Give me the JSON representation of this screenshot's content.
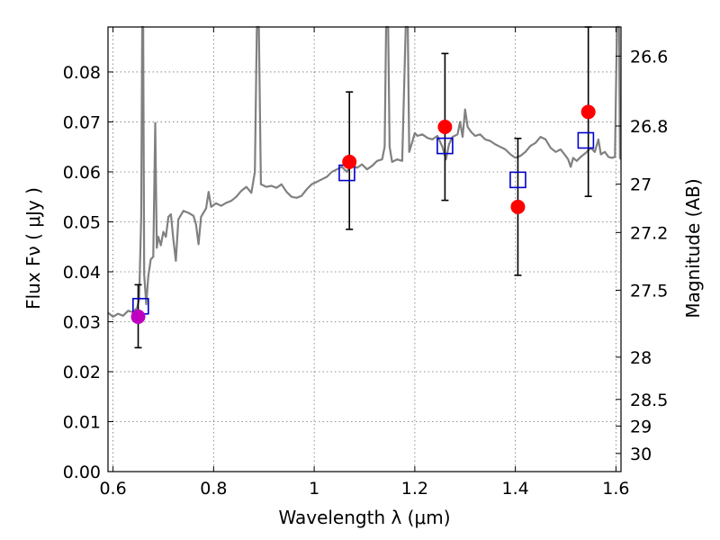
{
  "chart_data": {
    "type": "scatter",
    "xlabel": "Wavelength  λ (μm)",
    "ylabel": "Flux  Fν  ( μJy )",
    "y2label": "Magnitude (AB)",
    "xlim": [
      0.59,
      1.61
    ],
    "ylim": [
      0.0,
      0.089
    ],
    "grid": true,
    "x_ticks": [
      {
        "value": 0.6,
        "label": "0.6"
      },
      {
        "value": 0.8,
        "label": "0.8"
      },
      {
        "value": 1.0,
        "label": "1"
      },
      {
        "value": 1.2,
        "label": "1.2"
      },
      {
        "value": 1.4,
        "label": "1.4"
      },
      {
        "value": 1.6,
        "label": "1.6"
      }
    ],
    "y_ticks": [
      {
        "value": 0.0,
        "label": "0.00"
      },
      {
        "value": 0.01,
        "label": "0.01"
      },
      {
        "value": 0.02,
        "label": "0.02"
      },
      {
        "value": 0.03,
        "label": "0.03"
      },
      {
        "value": 0.04,
        "label": "0.04"
      },
      {
        "value": 0.05,
        "label": "0.05"
      },
      {
        "value": 0.06,
        "label": "0.06"
      },
      {
        "value": 0.07,
        "label": "0.07"
      },
      {
        "value": 0.08,
        "label": "0.08"
      }
    ],
    "mag_ticks": [
      {
        "value": 26.6,
        "label": "26.6"
      },
      {
        "value": 26.8,
        "label": "26.8"
      },
      {
        "value": 27.0,
        "label": "27"
      },
      {
        "value": 27.2,
        "label": "27.2"
      },
      {
        "value": 27.5,
        "label": "27.5"
      },
      {
        "value": 28.0,
        "label": "28"
      },
      {
        "value": 28.5,
        "label": "28.5"
      },
      {
        "value": 29.0,
        "label": "29"
      },
      {
        "value": 30.0,
        "label": "30"
      }
    ],
    "observed": [
      {
        "x": 0.65,
        "y": 0.031,
        "yerr_low": 0.0248,
        "yerr_high": 0.0374,
        "color": "#bf00bf"
      },
      {
        "x": 1.07,
        "y": 0.062,
        "yerr_low": 0.0485,
        "yerr_high": 0.076,
        "color": "#ff0000"
      },
      {
        "x": 1.26,
        "y": 0.069,
        "yerr_low": 0.0543,
        "yerr_high": 0.0837,
        "color": "#ff0000"
      },
      {
        "x": 1.405,
        "y": 0.053,
        "yerr_low": 0.0393,
        "yerr_high": 0.0667,
        "color": "#ff0000"
      },
      {
        "x": 1.545,
        "y": 0.072,
        "yerr_low": 0.0551,
        "yerr_high": 0.089,
        "color": "#ff0000"
      }
    ],
    "model_points": [
      {
        "x": 0.655,
        "y": 0.0331
      },
      {
        "x": 1.065,
        "y": 0.0598
      },
      {
        "x": 1.26,
        "y": 0.0652
      },
      {
        "x": 1.405,
        "y": 0.0584
      },
      {
        "x": 1.54,
        "y": 0.0663
      }
    ],
    "spectrum": {
      "color": "#808080",
      "points": [
        [
          0.59,
          0.0318
        ],
        [
          0.6,
          0.031
        ],
        [
          0.61,
          0.0316
        ],
        [
          0.62,
          0.0312
        ],
        [
          0.63,
          0.0322
        ],
        [
          0.64,
          0.0319
        ],
        [
          0.648,
          0.0328
        ],
        [
          0.652,
          0.0345
        ],
        [
          0.656,
          0.051
        ],
        [
          0.658,
          0.089
        ],
        [
          0.66,
          0.089
        ],
        [
          0.662,
          0.0395
        ],
        [
          0.666,
          0.0335
        ],
        [
          0.67,
          0.039
        ],
        [
          0.675,
          0.0425
        ],
        [
          0.68,
          0.043
        ],
        [
          0.684,
          0.0698
        ],
        [
          0.687,
          0.0448
        ],
        [
          0.69,
          0.047
        ],
        [
          0.695,
          0.0453
        ],
        [
          0.7,
          0.048
        ],
        [
          0.705,
          0.047
        ],
        [
          0.71,
          0.051
        ],
        [
          0.715,
          0.0515
        ],
        [
          0.72,
          0.0465
        ],
        [
          0.725,
          0.0422
        ],
        [
          0.73,
          0.0505
        ],
        [
          0.74,
          0.0522
        ],
        [
          0.75,
          0.0518
        ],
        [
          0.76,
          0.0512
        ],
        [
          0.765,
          0.0495
        ],
        [
          0.77,
          0.0455
        ],
        [
          0.775,
          0.051
        ],
        [
          0.785,
          0.0527
        ],
        [
          0.79,
          0.056
        ],
        [
          0.795,
          0.053
        ],
        [
          0.805,
          0.0537
        ],
        [
          0.815,
          0.0532
        ],
        [
          0.825,
          0.0538
        ],
        [
          0.835,
          0.0542
        ],
        [
          0.845,
          0.055
        ],
        [
          0.855,
          0.0562
        ],
        [
          0.865,
          0.057
        ],
        [
          0.875,
          0.0558
        ],
        [
          0.882,
          0.06
        ],
        [
          0.886,
          0.089
        ],
        [
          0.89,
          0.089
        ],
        [
          0.894,
          0.0575
        ],
        [
          0.905,
          0.057
        ],
        [
          0.915,
          0.0572
        ],
        [
          0.925,
          0.0568
        ],
        [
          0.935,
          0.0575
        ],
        [
          0.945,
          0.056
        ],
        [
          0.955,
          0.055
        ],
        [
          0.965,
          0.0548
        ],
        [
          0.975,
          0.0552
        ],
        [
          0.985,
          0.0565
        ],
        [
          0.995,
          0.0575
        ],
        [
          1.005,
          0.058
        ],
        [
          1.015,
          0.0585
        ],
        [
          1.025,
          0.059
        ],
        [
          1.035,
          0.06
        ],
        [
          1.045,
          0.0605
        ],
        [
          1.055,
          0.061
        ],
        [
          1.065,
          0.06
        ],
        [
          1.075,
          0.0615
        ],
        [
          1.085,
          0.0608
        ],
        [
          1.095,
          0.0615
        ],
        [
          1.105,
          0.0605
        ],
        [
          1.115,
          0.0612
        ],
        [
          1.125,
          0.0622
        ],
        [
          1.135,
          0.0625
        ],
        [
          1.14,
          0.065
        ],
        [
          1.143,
          0.089
        ],
        [
          1.147,
          0.089
        ],
        [
          1.15,
          0.065
        ],
        [
          1.155,
          0.062
        ],
        [
          1.165,
          0.0625
        ],
        [
          1.175,
          0.0622
        ],
        [
          1.182,
          0.089
        ],
        [
          1.186,
          0.089
        ],
        [
          1.189,
          0.064
        ],
        [
          1.195,
          0.066
        ],
        [
          1.2,
          0.0678
        ],
        [
          1.205,
          0.0672
        ],
        [
          1.215,
          0.0675
        ],
        [
          1.225,
          0.0668
        ],
        [
          1.235,
          0.0665
        ],
        [
          1.245,
          0.0672
        ],
        [
          1.255,
          0.065
        ],
        [
          1.262,
          0.0625
        ],
        [
          1.268,
          0.0655
        ],
        [
          1.275,
          0.067
        ],
        [
          1.285,
          0.0675
        ],
        [
          1.29,
          0.07
        ],
        [
          1.295,
          0.067
        ],
        [
          1.3,
          0.0725
        ],
        [
          1.305,
          0.069
        ],
        [
          1.312,
          0.068
        ],
        [
          1.32,
          0.0672
        ],
        [
          1.33,
          0.0675
        ],
        [
          1.34,
          0.0665
        ],
        [
          1.35,
          0.0662
        ],
        [
          1.36,
          0.0655
        ],
        [
          1.37,
          0.065
        ],
        [
          1.38,
          0.0645
        ],
        [
          1.39,
          0.0635
        ],
        [
          1.4,
          0.0628
        ],
        [
          1.41,
          0.0632
        ],
        [
          1.42,
          0.064
        ],
        [
          1.43,
          0.0652
        ],
        [
          1.44,
          0.0658
        ],
        [
          1.45,
          0.067
        ],
        [
          1.46,
          0.0665
        ],
        [
          1.47,
          0.0648
        ],
        [
          1.48,
          0.064
        ],
        [
          1.49,
          0.0645
        ],
        [
          1.5,
          0.0632
        ],
        [
          1.505,
          0.0625
        ],
        [
          1.51,
          0.061
        ],
        [
          1.515,
          0.0628
        ],
        [
          1.522,
          0.0622
        ],
        [
          1.53,
          0.063
        ],
        [
          1.54,
          0.0638
        ],
        [
          1.55,
          0.0648
        ],
        [
          1.558,
          0.064
        ],
        [
          1.565,
          0.0665
        ],
        [
          1.57,
          0.0635
        ],
        [
          1.578,
          0.064
        ],
        [
          1.585,
          0.063
        ],
        [
          1.592,
          0.0628
        ],
        [
          1.598,
          0.063
        ],
        [
          1.602,
          0.089
        ],
        [
          1.606,
          0.089
        ],
        [
          1.608,
          0.0628
        ],
        [
          1.61,
          0.0625
        ]
      ]
    }
  }
}
